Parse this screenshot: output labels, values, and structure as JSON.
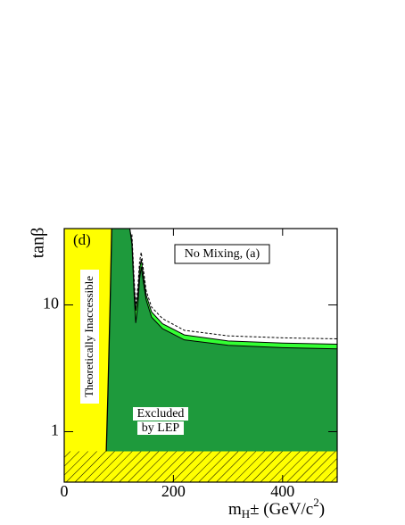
{
  "chart_data": {
    "type": "area",
    "ylabel": "tanβ",
    "xlabel": [
      "m",
      "H",
      "± (GeV/c",
      "2",
      ")"
    ],
    "annotations": {
      "panel": "(d)",
      "box": "No Mixing, (a)",
      "theory": "Theoretically Inaccessible",
      "excluded": [
        "Excluded",
        "by LEP"
      ]
    },
    "xlim": [
      0,
      500
    ],
    "xticks": [
      0,
      200,
      400
    ],
    "ylim": [
      0.4,
      40
    ],
    "yticks": [
      1,
      10
    ],
    "log_y": true,
    "series": [
      {
        "style": "fill-below",
        "color": "#33ff33",
        "x": [
          87,
          120,
          124,
          128,
          131,
          135,
          138,
          141,
          145,
          150,
          160,
          180,
          220,
          300,
          400,
          500
        ],
        "values": [
          40,
          40,
          32,
          14,
          9,
          12,
          19,
          23,
          17,
          12,
          8.8,
          7.1,
          5.8,
          5.2,
          5.0,
          4.9
        ]
      },
      {
        "style": "fill-below",
        "color": "#1e9a3c",
        "x": [
          87,
          120,
          124,
          128,
          131,
          135,
          138,
          141,
          145,
          150,
          160,
          180,
          220,
          300,
          400,
          500
        ],
        "values": [
          40,
          40,
          30,
          12,
          7.2,
          10,
          16,
          20,
          15,
          11,
          8,
          6.5,
          5.3,
          4.8,
          4.6,
          4.5
        ]
      },
      {
        "style": "dashed",
        "color": "#000000",
        "x": [
          124,
          128,
          131,
          135,
          138,
          141,
          145,
          150,
          160,
          180,
          220,
          300,
          400,
          500
        ],
        "values": [
          36,
          16,
          10,
          14,
          22,
          26,
          19,
          13,
          9.6,
          7.8,
          6.3,
          5.7,
          5.5,
          5.4
        ]
      },
      {
        "style": "fill-left",
        "color": "#ffff00",
        "x": [
          75,
          77,
          80,
          84,
          87
        ],
        "values": [
          0.4,
          0.7,
          2,
          10,
          40
        ]
      },
      {
        "style": "hatch-below",
        "color": "#ffff00",
        "x": [
          0,
          500
        ],
        "values": [
          0.7,
          0.7
        ]
      }
    ]
  }
}
